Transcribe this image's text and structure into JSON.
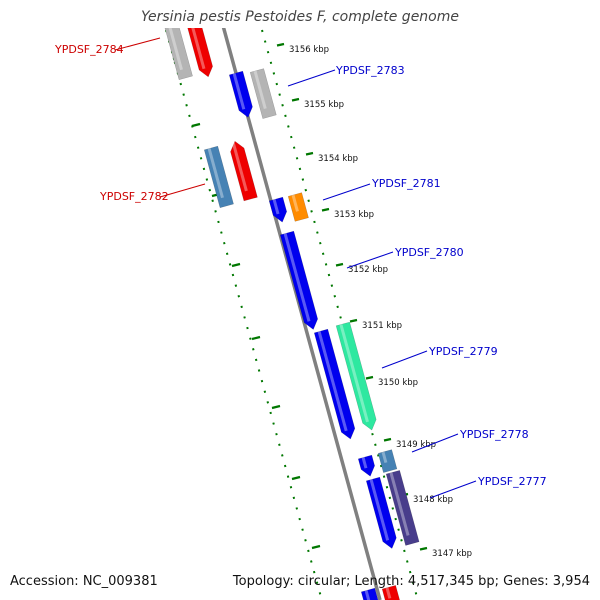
{
  "title": "Yersinia pestis Pestoides F, complete genome",
  "footer": {
    "accession": "Accession: NC_009381",
    "summary": "Topology: circular; Length: 4,517,345 bp; Genes: 3,954"
  },
  "ticks": [
    "3156 kbp",
    "3155 kbp",
    "3154 kbp",
    "3153 kbp",
    "3152 kbp",
    "3151 kbp",
    "3150 kbp",
    "3149 kbp",
    "3148 kbp",
    "3147 kbp"
  ],
  "genes": [
    {
      "name": "YPDSF_2784",
      "strand": "reverse"
    },
    {
      "name": "YPDSF_2783",
      "strand": "forward"
    },
    {
      "name": "YPDSF_2782",
      "strand": "reverse"
    },
    {
      "name": "YPDSF_2781",
      "strand": "forward"
    },
    {
      "name": "YPDSF_2780",
      "strand": "forward"
    },
    {
      "name": "YPDSF_2779",
      "strand": "forward"
    },
    {
      "name": "YPDSF_2778",
      "strand": "forward"
    },
    {
      "name": "YPDSF_2777",
      "strand": "forward"
    }
  ],
  "colors": {
    "forward_label": "#0000cc",
    "reverse_label": "#cc0000",
    "backbone": "#808080",
    "ruler": "#007700",
    "blue_cds": "#0000ee",
    "red_cds": "#ee0000",
    "grey_cds": "#b4b4b4",
    "steel_cds": "#4682b4",
    "orange_cds": "#ff8c00",
    "green_cds": "#2ee8a0",
    "slate_cds": "#483d8b"
  }
}
